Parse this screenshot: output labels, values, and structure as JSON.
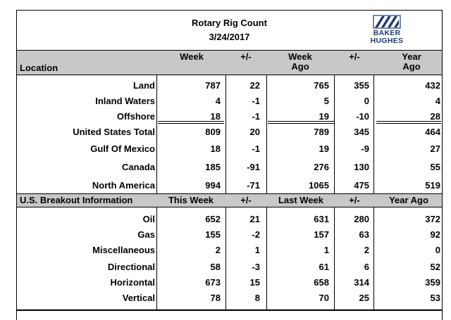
{
  "title": "Rotary Rig Count",
  "date": "3/24/2017",
  "logo": {
    "line1": "BAKER",
    "line2": "HUGHES",
    "mark": "baker-hughes-logo"
  },
  "header1": {
    "location": "Location",
    "week": "Week",
    "pm1": "+/-",
    "week_ago_1": "Week",
    "week_ago_2": "Ago",
    "pm2": "+/-",
    "year_ago_1": "Year",
    "year_ago_2": "Ago"
  },
  "location_rows": [
    {
      "label": "Land",
      "week": "787",
      "pm1": "22",
      "week_ago": "765",
      "pm2": "355",
      "year_ago": "432"
    },
    {
      "label": "Inland Waters",
      "week": "4",
      "pm1": "-1",
      "week_ago": "5",
      "pm2": "0",
      "year_ago": "4"
    },
    {
      "label": "Offshore",
      "week": "18",
      "pm1": "-1",
      "week_ago": "19",
      "pm2": "-10",
      "year_ago": "28"
    },
    {
      "label": "United States Total",
      "week": "809",
      "pm1": "20",
      "week_ago": "789",
      "pm2": "345",
      "year_ago": "464"
    },
    {
      "label": "Gulf Of Mexico",
      "week": "18",
      "pm1": "-1",
      "week_ago": "19",
      "pm2": "-9",
      "year_ago": "27"
    },
    {
      "label": "Canada",
      "week": "185",
      "pm1": "-91",
      "week_ago": "276",
      "pm2": "130",
      "year_ago": "55"
    },
    {
      "label": "North America",
      "week": "994",
      "pm1": "-71",
      "week_ago": "1065",
      "pm2": "475",
      "year_ago": "519"
    }
  ],
  "header2": {
    "label": "U.S. Breakout Information",
    "this_week": "This Week",
    "pm1": "+/-",
    "last_week": "Last Week",
    "pm2": "+/-",
    "year_ago": "Year Ago"
  },
  "breakout_rows": [
    {
      "label": "Oil",
      "week": "652",
      "pm1": "21",
      "week_ago": "631",
      "pm2": "280",
      "year_ago": "372"
    },
    {
      "label": "Gas",
      "week": "155",
      "pm1": "-2",
      "week_ago": "157",
      "pm2": "63",
      "year_ago": "92"
    },
    {
      "label": "Miscellaneous",
      "week": "2",
      "pm1": "1",
      "week_ago": "1",
      "pm2": "2",
      "year_ago": "0"
    },
    {
      "label": "Directional",
      "week": "58",
      "pm1": "-3",
      "week_ago": "61",
      "pm2": "6",
      "year_ago": "52"
    },
    {
      "label": "Horizontal",
      "week": "673",
      "pm1": "15",
      "week_ago": "658",
      "pm2": "314",
      "year_ago": "359"
    },
    {
      "label": "Vertical",
      "week": "78",
      "pm1": "8",
      "week_ago": "70",
      "pm2": "25",
      "year_ago": "53"
    }
  ]
}
